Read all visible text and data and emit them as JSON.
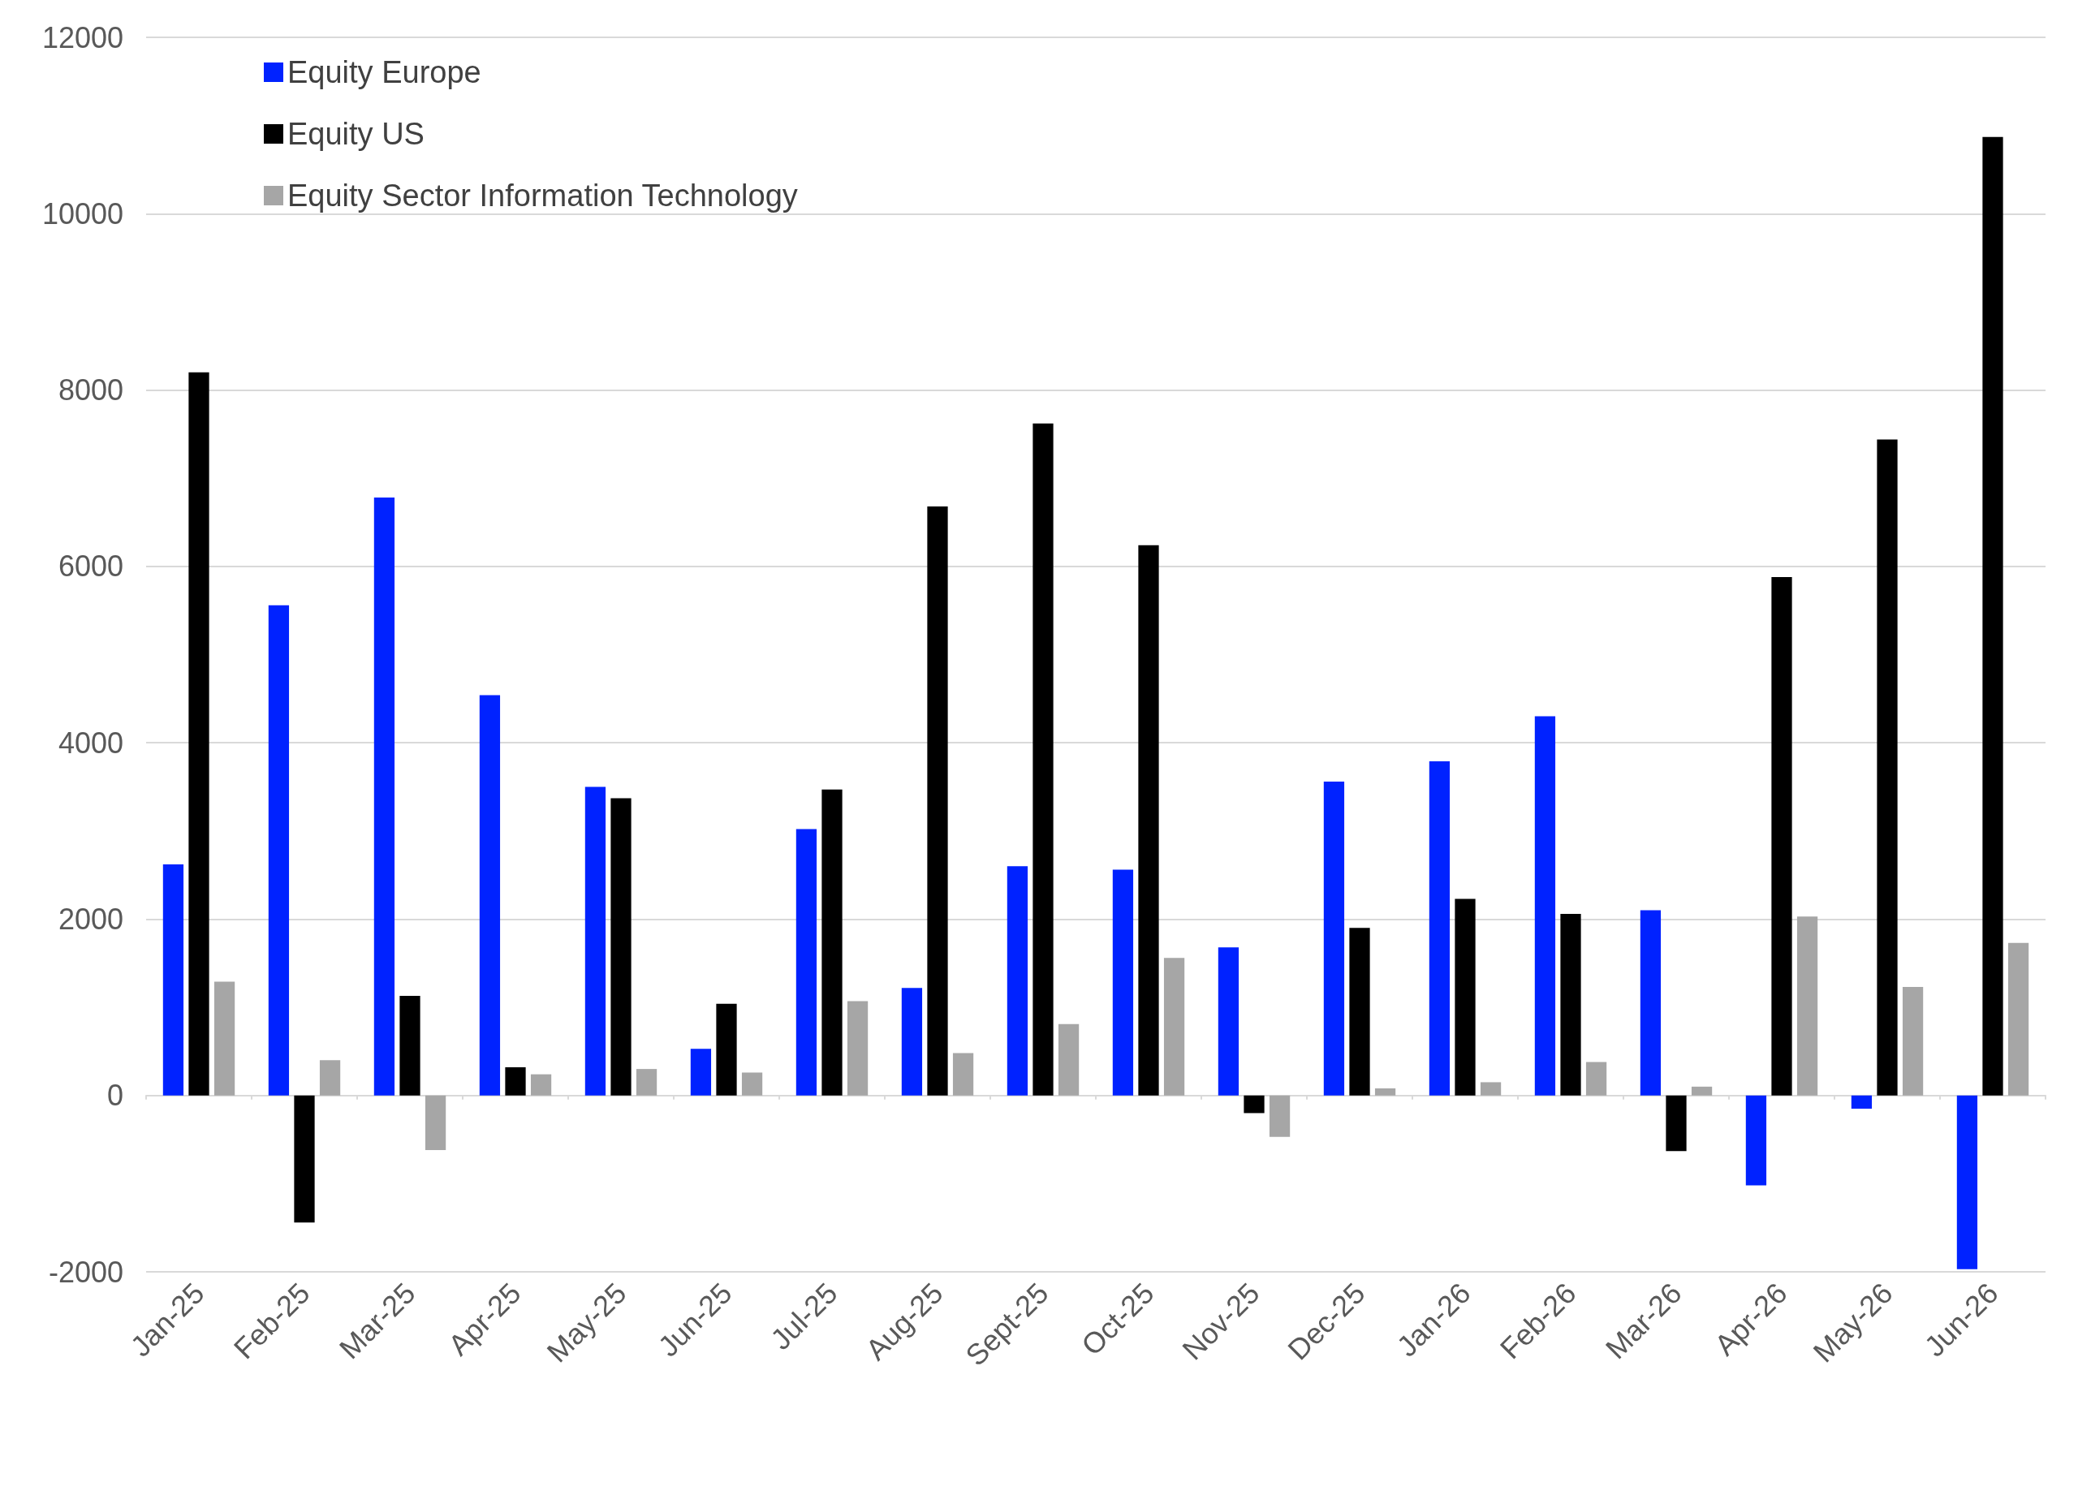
{
  "chart_data": {
    "type": "bar",
    "categories": [
      "Jan-25",
      "Feb-25",
      "Mar-25",
      "Apr-25",
      "May-25",
      "Jun-25",
      "Jul-25",
      "Aug-25",
      "Sept-25",
      "Oct-25",
      "Nov-25",
      "Dec-25",
      "Jan-26",
      "Feb-26",
      "Mar-26",
      "Apr-26",
      "May-26",
      "Jun-26"
    ],
    "series": [
      {
        "name": "Equity Europe",
        "color": "#0022ff",
        "values": [
          2620,
          5560,
          6780,
          4540,
          3500,
          530,
          3020,
          1220,
          2600,
          2560,
          1680,
          3560,
          3790,
          4300,
          2100,
          -1020,
          -150,
          -1970
        ]
      },
      {
        "name": "Equity US",
        "color": "#000000",
        "values": [
          8200,
          -1440,
          1130,
          320,
          3370,
          1040,
          3470,
          6680,
          7620,
          6240,
          -200,
          1900,
          2230,
          2060,
          -630,
          5880,
          7440,
          10870
        ]
      },
      {
        "name": "Equity Sector Information Technology",
        "color": "#a6a6a6",
        "values": [
          1290,
          400,
          -620,
          240,
          300,
          260,
          1070,
          480,
          810,
          1560,
          -470,
          80,
          150,
          380,
          100,
          2030,
          1230,
          1730
        ]
      }
    ],
    "ylim": [
      -2000,
      12000
    ],
    "yticks": [
      -2000,
      0,
      2000,
      4000,
      6000,
      8000,
      10000,
      12000
    ],
    "grid": "y",
    "legend": "top left"
  }
}
